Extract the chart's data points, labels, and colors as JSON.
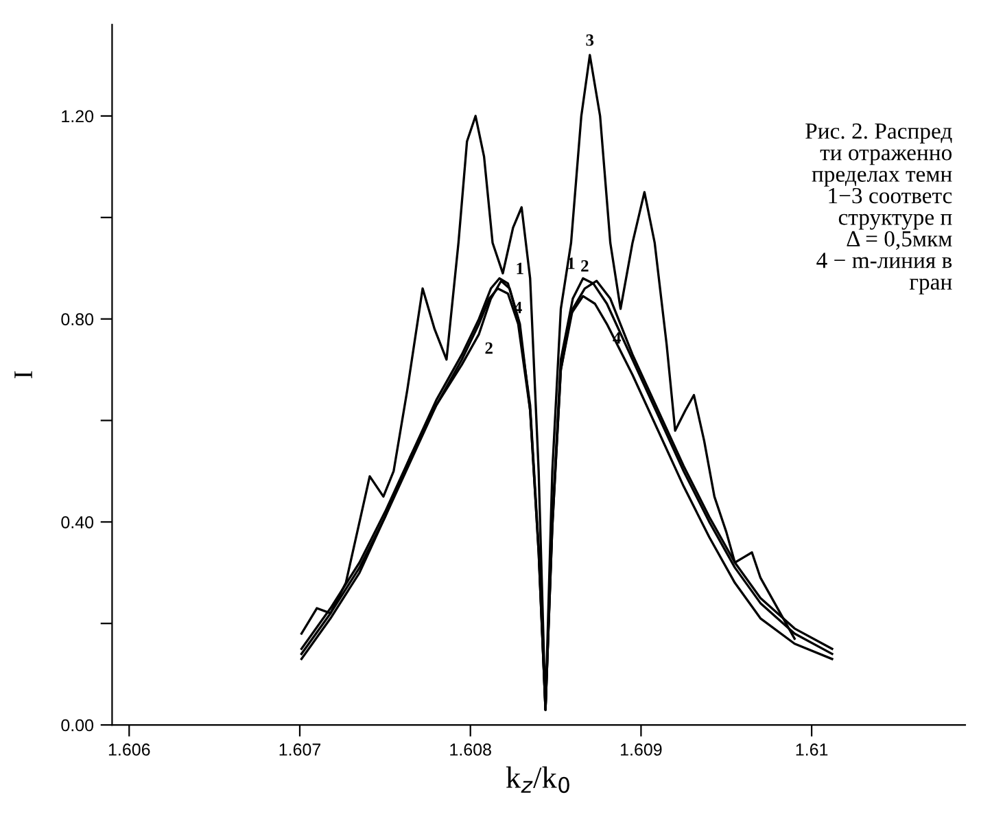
{
  "chart_data": {
    "type": "line",
    "xlabel": "k$_{z}$/k$_{0}$",
    "ylabel": "I",
    "xlim": [
      1.6059,
      1.6109
    ],
    "xticks": [
      1.606,
      1.607,
      1.608,
      1.609,
      1.61
    ],
    "ylim": [
      0,
      1.38
    ],
    "yticks": [
      {
        "value": 0,
        "label": "0.00"
      },
      {
        "value": 0.2,
        "label": null
      },
      {
        "value": 0.4,
        "label": "0.40"
      },
      {
        "value": 0.6,
        "label": null
      },
      {
        "value": 0.8,
        "label": "0.80"
      },
      {
        "value": 1.0,
        "label": null
      },
      {
        "value": 1.2,
        "label": "1.20"
      }
    ],
    "grid": false,
    "legend": false,
    "marker": "none",
    "line_style": "solid",
    "series": [
      {
        "color": "#000000",
        "x": [
          1.60701,
          1.60718,
          1.60735,
          1.6075,
          1.60765,
          1.6078,
          1.60795,
          1.60805,
          1.60812,
          1.60817,
          1.60822,
          1.60828,
          1.60835,
          1.6084,
          1.60844,
          1.60848,
          1.60853,
          1.6086,
          1.60866,
          1.60872,
          1.6088,
          1.60895,
          1.6091,
          1.60925,
          1.6094,
          1.60955,
          1.6097,
          1.6099,
          1.61012
        ],
        "values": [
          0.14,
          0.22,
          0.31,
          0.41,
          0.53,
          0.64,
          0.73,
          0.8,
          0.86,
          0.88,
          0.87,
          0.8,
          0.63,
          0.35,
          0.03,
          0.4,
          0.72,
          0.84,
          0.88,
          0.87,
          0.83,
          0.72,
          0.61,
          0.5,
          0.4,
          0.31,
          0.24,
          0.18,
          0.14
        ]
      },
      {
        "color": "#000000",
        "x": [
          1.60701,
          1.60718,
          1.60735,
          1.6075,
          1.60765,
          1.6078,
          1.60795,
          1.60805,
          1.60812,
          1.60818,
          1.60823,
          1.60829,
          1.60835,
          1.6084,
          1.60844,
          1.60848,
          1.60853,
          1.6086,
          1.60867,
          1.60874,
          1.60882,
          1.60895,
          1.6091,
          1.60925,
          1.6094,
          1.60955,
          1.6097,
          1.6099,
          1.61012
        ],
        "values": [
          0.15,
          0.23,
          0.32,
          0.42,
          0.53,
          0.63,
          0.71,
          0.77,
          0.84,
          0.875,
          0.86,
          0.79,
          0.62,
          0.34,
          0.03,
          0.39,
          0.7,
          0.82,
          0.86,
          0.875,
          0.84,
          0.73,
          0.62,
          0.51,
          0.41,
          0.32,
          0.25,
          0.19,
          0.15
        ]
      },
      {
        "color": "#000000",
        "x": [
          1.60701,
          1.6071,
          1.60718,
          1.60727,
          1.60735,
          1.60741,
          1.60749,
          1.60755,
          1.60763,
          1.60772,
          1.60779,
          1.60786,
          1.60793,
          1.60798,
          1.60803,
          1.60808,
          1.60813,
          1.60819,
          1.60825,
          1.6083,
          1.60835,
          1.6084,
          1.60844,
          1.60848,
          1.60853,
          1.60859,
          1.60865,
          1.6087,
          1.60876,
          1.60882,
          1.60888,
          1.60895,
          1.60902,
          1.60908,
          1.60915,
          1.6092,
          1.60926,
          1.60931,
          1.60937,
          1.60943,
          1.6095,
          1.60955,
          1.6096,
          1.60965,
          1.6097,
          1.6099
        ],
        "values": [
          0.18,
          0.23,
          0.22,
          0.28,
          0.4,
          0.49,
          0.45,
          0.5,
          0.66,
          0.86,
          0.78,
          0.72,
          0.95,
          1.15,
          1.2,
          1.12,
          0.95,
          0.89,
          0.98,
          1.02,
          0.88,
          0.5,
          0.03,
          0.5,
          0.82,
          0.95,
          1.2,
          1.32,
          1.2,
          0.95,
          0.82,
          0.95,
          1.05,
          0.95,
          0.75,
          0.58,
          0.62,
          0.65,
          0.56,
          0.45,
          0.38,
          0.32,
          0.33,
          0.34,
          0.29,
          0.17
        ]
      },
      {
        "color": "#000000",
        "x": [
          1.60701,
          1.60718,
          1.60735,
          1.6075,
          1.60765,
          1.6078,
          1.60795,
          1.60805,
          1.60811,
          1.60816,
          1.60822,
          1.60828,
          1.60835,
          1.6084,
          1.60844,
          1.60848,
          1.60853,
          1.60859,
          1.60866,
          1.60873,
          1.6088,
          1.60895,
          1.6091,
          1.60925,
          1.6094,
          1.60955,
          1.6097,
          1.6099,
          1.61012
        ],
        "values": [
          0.13,
          0.21,
          0.3,
          0.41,
          0.52,
          0.63,
          0.72,
          0.79,
          0.84,
          0.86,
          0.85,
          0.79,
          0.62,
          0.34,
          0.03,
          0.39,
          0.7,
          0.81,
          0.845,
          0.83,
          0.79,
          0.69,
          0.58,
          0.47,
          0.37,
          0.28,
          0.21,
          0.16,
          0.13
        ]
      }
    ],
    "annotations": [
      {
        "text": "1",
        "x": 1.60822,
        "y": 0.87
      },
      {
        "text": "4",
        "x": 1.60822,
        "y": 0.85
      },
      {
        "text": "2",
        "x": 1.60805,
        "y": 0.77
      },
      {
        "text": "1",
        "x": 1.60866,
        "y": 0.88
      },
      {
        "text": "2",
        "x": 1.60874,
        "y": 0.875
      },
      {
        "text": "4",
        "x": 1.6088,
        "y": 0.79
      },
      {
        "text": "3",
        "x": 1.6087,
        "y": 1.32
      },
      "Рис. 2. Распред\nти отраженно\nпределах темн\n1−3 соответс\nструктуре п\nΔ = 0,5мкм\n4 − m-линия в\nгран"
    ]
  }
}
